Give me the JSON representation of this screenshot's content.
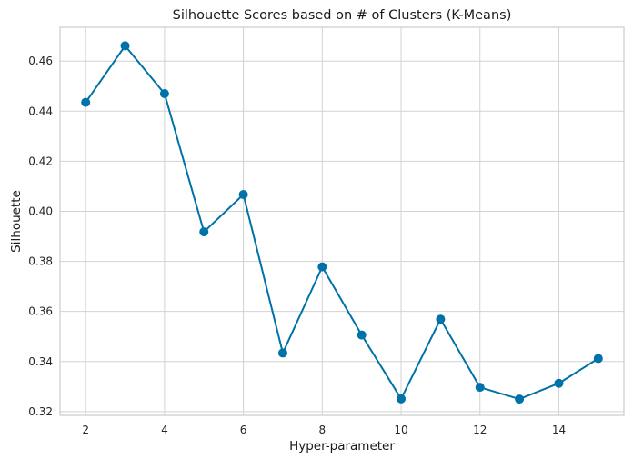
{
  "chart_data": {
    "type": "line",
    "title": "Silhouette Scores based on # of Clusters (K-Means)",
    "xlabel": "Hyper-parameter",
    "ylabel": "Silhouette",
    "x": [
      2,
      3,
      4,
      5,
      6,
      7,
      8,
      9,
      10,
      11,
      12,
      13,
      14,
      15
    ],
    "series": [
      {
        "values": [
          0.4435,
          0.4661,
          0.447,
          0.3918,
          0.4067,
          0.3434,
          0.3778,
          0.3506,
          0.3251,
          0.3569,
          0.3297,
          0.325,
          0.3313,
          0.3412
        ]
      }
    ],
    "xlim": [
      1.35,
      15.65
    ],
    "ylim": [
      0.3185,
      0.4735
    ],
    "xticks": [
      2,
      4,
      6,
      8,
      10,
      12,
      14
    ],
    "yticks": [
      0.32,
      0.34,
      0.36,
      0.38,
      0.4,
      0.42,
      0.44,
      0.46
    ],
    "ytick_labels": [
      "0.32",
      "0.34",
      "0.36",
      "0.38",
      "0.40",
      "0.42",
      "0.44",
      "0.46"
    ],
    "grid": true,
    "colors": {
      "series": "#0072a8",
      "grid": "#d2d2d2",
      "frame": "#cccccc",
      "background": "#ffffff"
    }
  }
}
